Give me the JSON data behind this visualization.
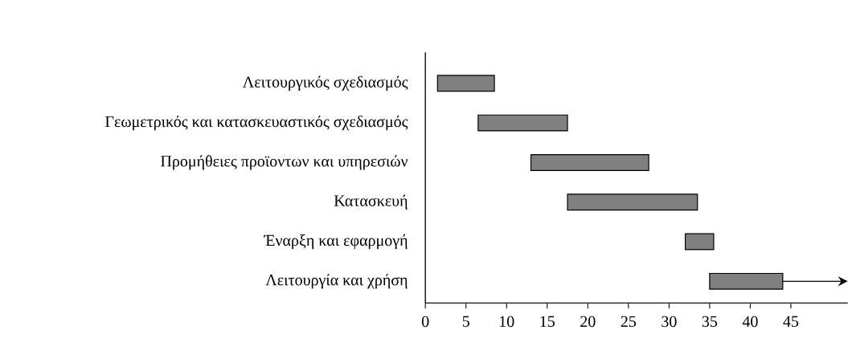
{
  "chart_data": {
    "type": "bar",
    "orientation": "horizontal",
    "categories": [
      "Λειτουργικός σχεδιασμός",
      "Γεωμετρικός και κατασκευαστικός σχεδιασμός",
      "Προμήθειες προϊοντων και υπηρεσιών",
      "Κατασκευή",
      "Έναρξη και εφαρμογή",
      "Λειτουργία και χρήση"
    ],
    "base": [
      1.5,
      6.5,
      13,
      17.5,
      32,
      35
    ],
    "values": [
      7,
      11,
      14.5,
      16,
      3.5,
      9
    ],
    "color": "#808080",
    "xlim": [
      0,
      52
    ],
    "xticks": [
      0,
      5,
      10,
      15,
      20,
      25,
      30,
      35,
      40,
      45
    ],
    "grid": false
  }
}
